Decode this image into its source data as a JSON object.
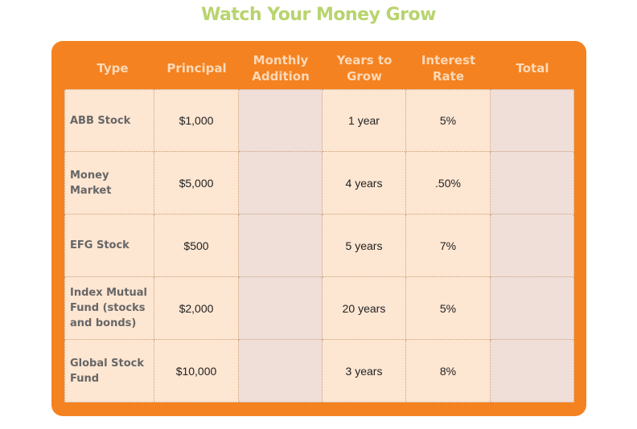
{
  "title": "Watch Your Money Grow",
  "colors": {
    "accent": "#f58220",
    "title": "#b8d46e",
    "cell": "#fde6d2",
    "blank_cell": "#efdfd8"
  },
  "headers": [
    "Type",
    "Principal",
    "Monthly Addition",
    "Years to Grow",
    "Interest Rate",
    "Total"
  ],
  "rows": [
    {
      "type": "ABB Stock",
      "principal": "$1,000",
      "monthly": "",
      "years": "1 year",
      "rate": "5%",
      "total": ""
    },
    {
      "type": "Money Market",
      "principal": "$5,000",
      "monthly": "",
      "years": "4 years",
      "rate": ".50%",
      "total": ""
    },
    {
      "type": "EFG Stock",
      "principal": "$500",
      "monthly": "",
      "years": "5 years",
      "rate": "7%",
      "total": ""
    },
    {
      "type": "Index Mutual Fund (stocks and bonds)",
      "principal": "$2,000",
      "monthly": "",
      "years": "20 years",
      "rate": "5%",
      "total": ""
    },
    {
      "type": "Global Stock Fund",
      "principal": "$10,000",
      "monthly": "",
      "years": "3 years",
      "rate": "8%",
      "total": ""
    }
  ]
}
